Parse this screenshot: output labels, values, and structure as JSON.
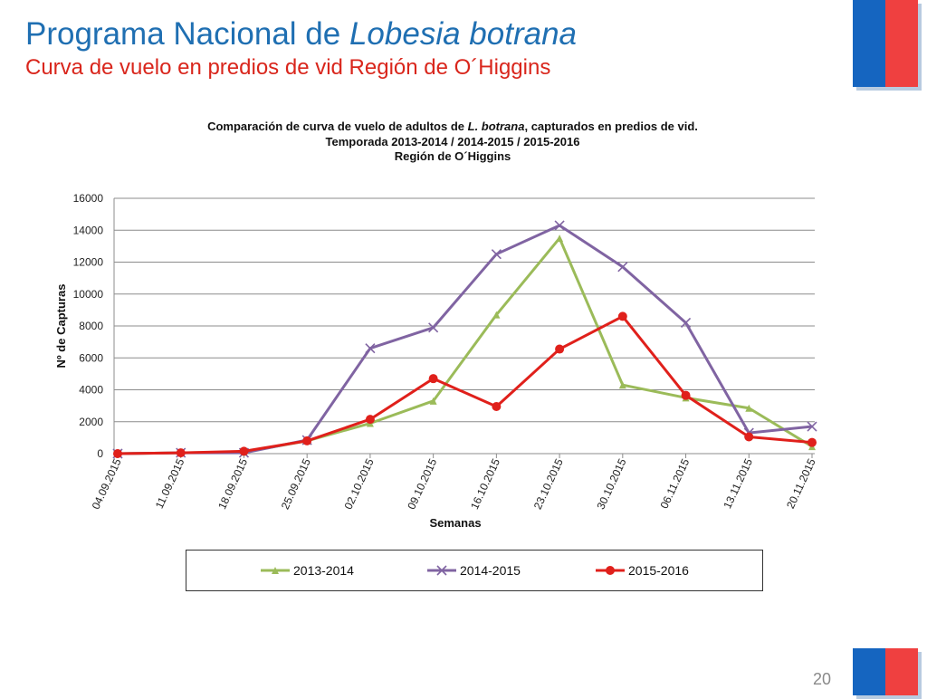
{
  "slide": {
    "title_prefix": "Programa Nacional de ",
    "title_italic": "Lobesia botrana",
    "subtitle": "Curva de vuelo en predios de vid Región de O´Higgins",
    "page_number": "20"
  },
  "chart_data": {
    "type": "line",
    "title_line1_a": "Comparación de curva de vuelo de adultos de ",
    "title_line1_italic": "L. botrana",
    "title_line1_b": ", capturados en predios de vid.",
    "title_line2": "Temporada 2013-2014 / 2014-2015 / 2015-2016",
    "title_line3": "Región de O´Higgins",
    "xlabel": "Semanas",
    "ylabel": "Nº de Capturas",
    "ylim": [
      0,
      16000
    ],
    "yticks": [
      0,
      2000,
      4000,
      6000,
      8000,
      10000,
      12000,
      14000,
      16000
    ],
    "grid": true,
    "legend_position": "bottom",
    "categories": [
      "04.09.2015",
      "11.09.2015",
      "18.09.2015",
      "25.09.2015",
      "02.10.2015",
      "09.10.2015",
      "16.10.2015",
      "23.10.2015",
      "30.10.2015",
      "06.11.2015",
      "13.11.2015",
      "20.11.2015"
    ],
    "series": [
      {
        "name": "2013-2014",
        "color": "#9bbb59",
        "marker": "triangle",
        "values": [
          0,
          50,
          100,
          800,
          1900,
          3300,
          8700,
          13500,
          4300,
          3500,
          2850,
          450
        ]
      },
      {
        "name": "2014-2015",
        "color": "#8064a2",
        "marker": "x",
        "values": [
          0,
          50,
          50,
          850,
          6600,
          7900,
          12500,
          14300,
          11700,
          8200,
          1300,
          1700
        ]
      },
      {
        "name": "2015-2016",
        "color": "#e0201b",
        "marker": "circle",
        "values": [
          0,
          50,
          150,
          800,
          2150,
          4700,
          2950,
          6550,
          8600,
          3650,
          1050,
          700
        ]
      }
    ]
  }
}
